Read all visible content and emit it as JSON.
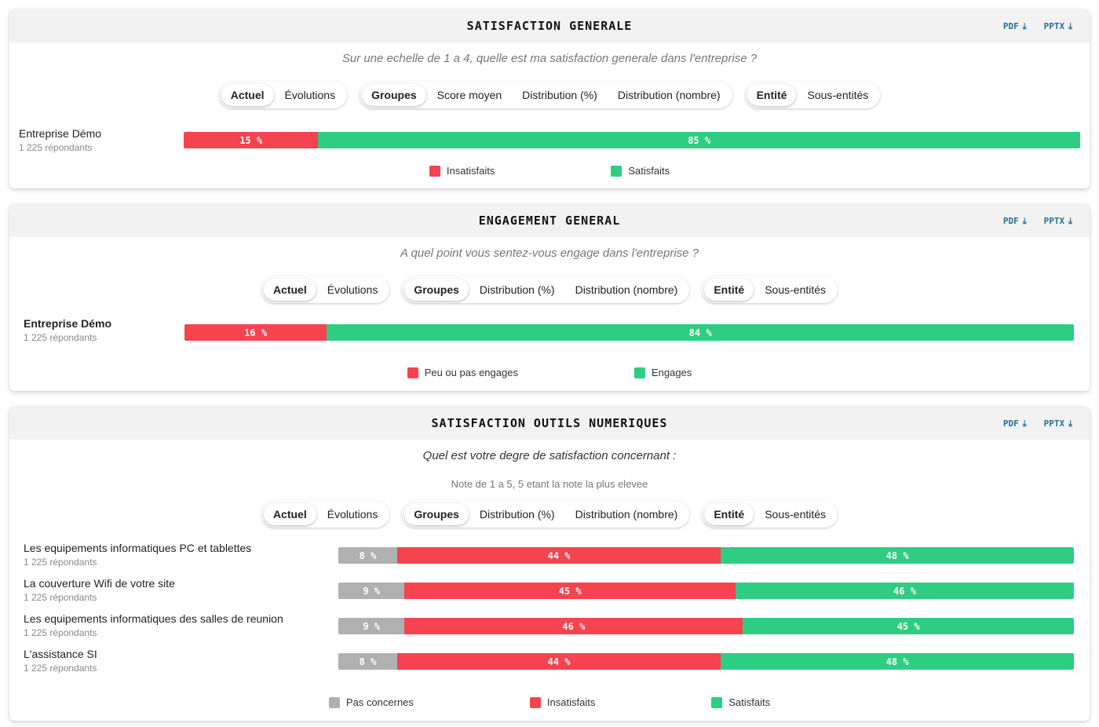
{
  "colors": {
    "red": "#f5434f",
    "green": "#2fcd82",
    "grey": "#b0b0b0",
    "link": "#2a6f97"
  },
  "export_labels": {
    "pdf": "PDF",
    "pptx": "PPTX"
  },
  "panels": [
    {
      "title": "SATISFACTION GENERALE",
      "question": "Sur une echelle de 1 a 4, quelle est ma satisfaction generale dans l'entreprise ?",
      "toggles": [
        [
          "Actuel",
          "Évolutions"
        ],
        [
          "Groupes",
          "Score moyen",
          "Distribution (%)",
          "Distribution (nombre)"
        ],
        [
          "Entité",
          "Sous-entités"
        ]
      ],
      "chart_data": {
        "type": "bar",
        "orientation": "horizontal-stacked-100",
        "categories": [
          "Entreprise Démo"
        ],
        "respondents": [
          "1 225 répondants"
        ],
        "series": [
          {
            "name": "Insatisfaits",
            "values": [
              15
            ],
            "labels": [
              "15 %"
            ]
          },
          {
            "name": "Satisfaits",
            "values": [
              85
            ],
            "labels": [
              "85 %"
            ]
          }
        ]
      }
    },
    {
      "title": "ENGAGEMENT GENERAL",
      "question": "A quel point vous sentez-vous engage dans l'entreprise ?",
      "toggles": [
        [
          "Actuel",
          "Évolutions"
        ],
        [
          "Groupes",
          "Distribution (%)",
          "Distribution (nombre)"
        ],
        [
          "Entité",
          "Sous-entités"
        ]
      ],
      "chart_data": {
        "type": "bar",
        "orientation": "horizontal-stacked-100",
        "categories": [
          "Entreprise Démo"
        ],
        "respondents": [
          "1 225 répondants"
        ],
        "series": [
          {
            "name": "Peu ou pas engages",
            "values": [
              16
            ],
            "labels": [
              "16 %"
            ]
          },
          {
            "name": "Engages",
            "values": [
              84
            ],
            "labels": [
              "84 %"
            ]
          }
        ]
      }
    },
    {
      "title": "SATISFACTION OUTILS NUMERIQUES",
      "question": "Quel est votre degre de satisfaction concernant :",
      "subquestion": "Note de 1 a 5, 5 etant la note la plus elevee",
      "toggles": [
        [
          "Actuel",
          "Évolutions"
        ],
        [
          "Groupes",
          "Distribution (%)",
          "Distribution (nombre)"
        ],
        [
          "Entité",
          "Sous-entités"
        ]
      ],
      "chart_data": {
        "type": "bar",
        "orientation": "horizontal-stacked-100",
        "categories": [
          "Les equipements informatiques PC et tablettes",
          "La couverture Wifi de votre site",
          "Les equipements informatiques des salles de reunion",
          "L'assistance SI"
        ],
        "respondents": [
          "1 225 répondants",
          "1 225 répondants",
          "1 225 répondants",
          "1 225 répondants"
        ],
        "series": [
          {
            "name": "Pas concernes",
            "values": [
              8,
              9,
              9,
              8
            ],
            "labels": [
              "8 %",
              "9 %",
              "9 %",
              "8 %"
            ]
          },
          {
            "name": "Insatisfaits",
            "values": [
              44,
              45,
              46,
              44
            ],
            "labels": [
              "44 %",
              "45 %",
              "46 %",
              "44 %"
            ]
          },
          {
            "name": "Satisfaits",
            "values": [
              48,
              46,
              45,
              48
            ],
            "labels": [
              "48 %",
              "46 %",
              "45 %",
              "48 %"
            ]
          }
        ]
      }
    }
  ]
}
